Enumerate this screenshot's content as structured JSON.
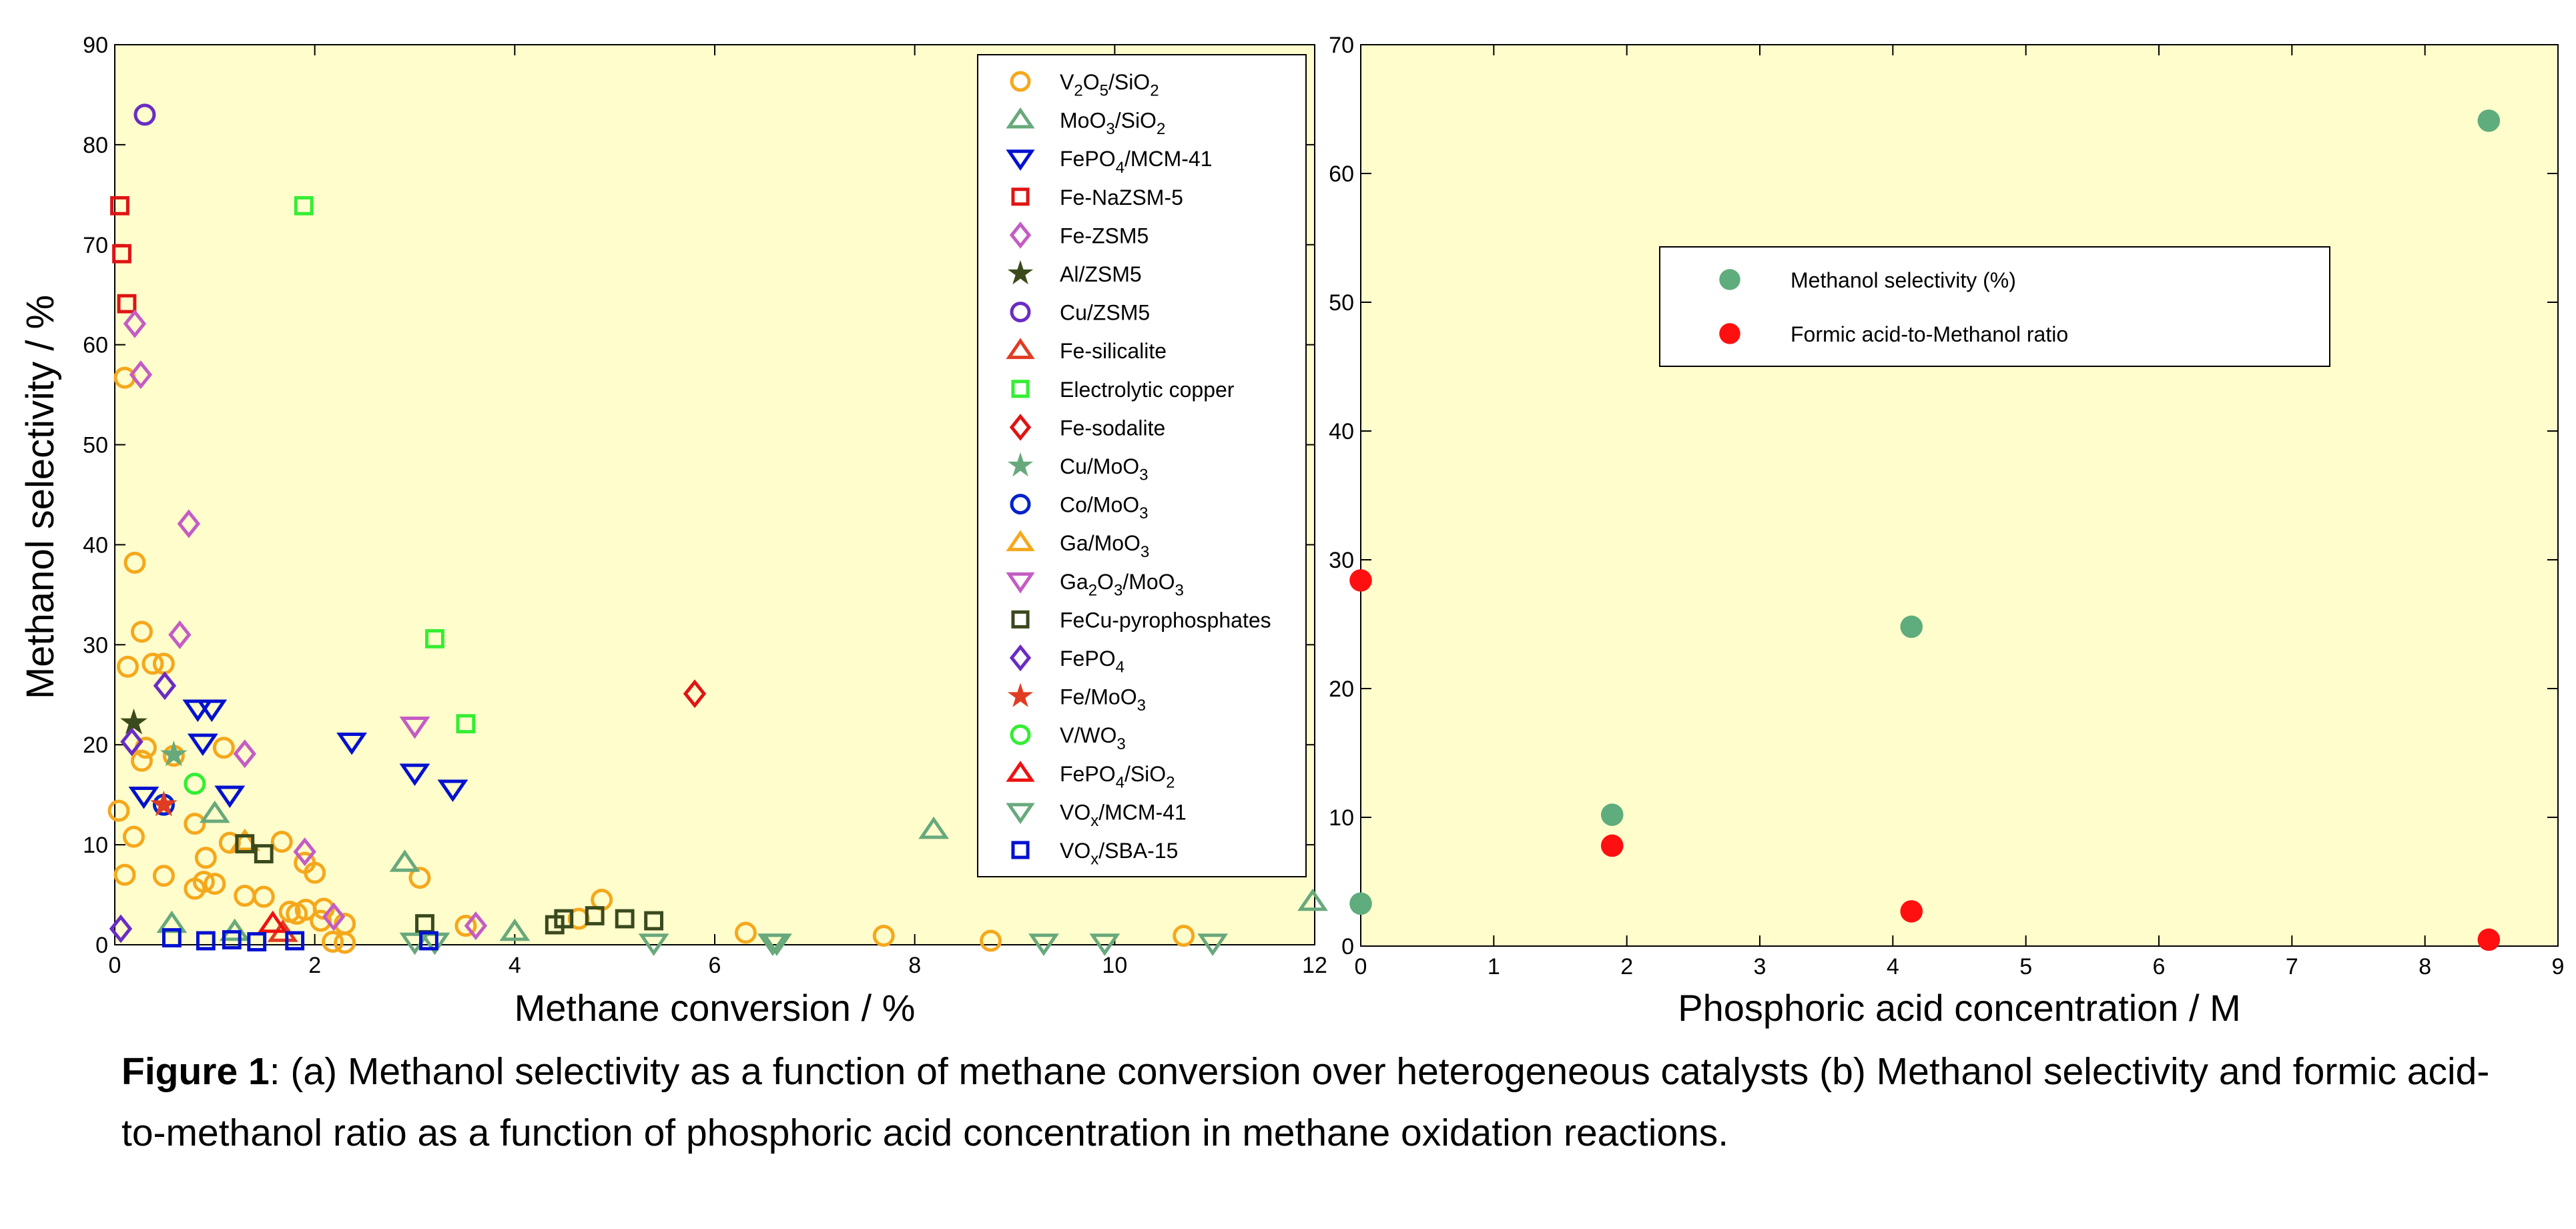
{
  "chart_data": [
    {
      "type": "scatter",
      "panel": "(a)",
      "xlabel": "Methane conversion / %",
      "ylabel": "Methanol selectivity / %",
      "xlim": [
        0,
        12
      ],
      "ylim": [
        0,
        90
      ],
      "xticks": [
        0,
        2,
        4,
        6,
        8,
        10,
        12
      ],
      "yticks": [
        0,
        10,
        20,
        30,
        40,
        50,
        60,
        70,
        80,
        90
      ],
      "grid": false,
      "legend_position": "top-right",
      "background": "#fffdcc",
      "series": [
        {
          "name": "V2O5/SiO2",
          "label_parts": [
            {
              "t": "V"
            },
            {
              "t": "2",
              "sub": true
            },
            {
              "t": "O"
            },
            {
              "t": "5",
              "sub": true
            },
            {
              "t": "/SiO"
            },
            {
              "t": "2",
              "sub": true
            }
          ],
          "marker": "circle",
          "color": "#f5a81c",
          "points": [
            [
              0.1,
              56.7
            ],
            [
              0.2,
              38.2
            ],
            [
              0.27,
              31.3
            ],
            [
              0.13,
              27.8
            ],
            [
              0.38,
              28.1
            ],
            [
              0.49,
              28.1
            ],
            [
              0.31,
              19.7
            ],
            [
              0.27,
              18.4
            ],
            [
              0.59,
              18.9
            ],
            [
              1.09,
              19.7
            ],
            [
              0.04,
              13.4
            ],
            [
              0.8,
              12.1
            ],
            [
              0.19,
              10.8
            ],
            [
              1.15,
              10.2
            ],
            [
              1.67,
              10.3
            ],
            [
              0.91,
              8.7
            ],
            [
              1.9,
              8.2
            ],
            [
              0.1,
              7.0
            ],
            [
              0.49,
              6.9
            ],
            [
              2.0,
              7.2
            ],
            [
              3.05,
              6.7
            ],
            [
              0.8,
              5.6
            ],
            [
              0.89,
              6.3
            ],
            [
              1.0,
              6.1
            ],
            [
              1.3,
              4.9
            ],
            [
              1.49,
              4.8
            ],
            [
              1.75,
              3.3
            ],
            [
              1.82,
              3.1
            ],
            [
              1.91,
              3.5
            ],
            [
              2.09,
              3.6
            ],
            [
              2.06,
              2.4
            ],
            [
              2.3,
              2.1
            ],
            [
              2.18,
              0.3
            ],
            [
              2.3,
              0.2
            ],
            [
              3.51,
              1.9
            ],
            [
              4.64,
              2.6
            ],
            [
              4.87,
              4.5
            ],
            [
              6.31,
              1.2
            ],
            [
              7.69,
              0.9
            ],
            [
              8.76,
              0.4
            ],
            [
              10.69,
              0.9
            ]
          ]
        },
        {
          "name": "MoO3/SiO2",
          "label_parts": [
            {
              "t": "MoO"
            },
            {
              "t": "3",
              "sub": true
            },
            {
              "t": "/SiO"
            },
            {
              "t": "2",
              "sub": true
            }
          ],
          "marker": "triangle-up",
          "color": "#68a97c",
          "points": [
            [
              0.57,
              2.1
            ],
            [
              1.2,
              1.3
            ],
            [
              1.0,
              13.1
            ],
            [
              2.9,
              8.2
            ],
            [
              4.0,
              1.3
            ],
            [
              8.19,
              11.5
            ],
            [
              11.98,
              4.3
            ]
          ]
        },
        {
          "name": "FePO4/MCM-41",
          "label_parts": [
            {
              "t": "FePO"
            },
            {
              "t": "4",
              "sub": true
            },
            {
              "t": "/MCM-41"
            }
          ],
          "marker": "triangle-down",
          "color": "#0010d0",
          "points": [
            [
              0.83,
              23.6
            ],
            [
              0.97,
              23.6
            ],
            [
              0.88,
              20.2
            ],
            [
              0.29,
              14.9
            ],
            [
              1.15,
              15.0
            ],
            [
              2.37,
              20.3
            ],
            [
              3.0,
              17.2
            ],
            [
              3.38,
              15.6
            ]
          ]
        },
        {
          "name": "Fe-NaZSM-5",
          "label_parts": [
            {
              "t": "Fe-NaZSM-5"
            }
          ],
          "marker": "square",
          "color": "#e01414",
          "points": [
            [
              0.05,
              73.9
            ],
            [
              0.07,
              69.1
            ],
            [
              0.12,
              64.1
            ]
          ]
        },
        {
          "name": "Fe-ZSM5",
          "label_parts": [
            {
              "t": "Fe-ZSM5"
            }
          ],
          "marker": "diamond",
          "color": "#c45cc4",
          "points": [
            [
              0.2,
              62.1
            ],
            [
              0.26,
              57.0
            ],
            [
              0.74,
              42.1
            ],
            [
              0.65,
              31.0
            ],
            [
              1.3,
              19.1
            ],
            [
              1.9,
              9.3
            ],
            [
              2.19,
              2.8
            ],
            [
              3.61,
              1.9
            ]
          ]
        },
        {
          "name": "Al/ZSM5",
          "label_parts": [
            {
              "t": "Al/ZSM5"
            }
          ],
          "marker": "star",
          "color": "#3a4a1c",
          "points": [
            [
              0.19,
              22.2
            ]
          ]
        },
        {
          "name": "Cu/ZSM5",
          "label_parts": [
            {
              "t": "Cu/ZSM5"
            }
          ],
          "marker": "circle",
          "color": "#6a2cc4",
          "points": [
            [
              0.3,
              83.0
            ]
          ]
        },
        {
          "name": "Fe-silicalite",
          "label_parts": [
            {
              "t": "Fe-silicalite"
            }
          ],
          "marker": "triangle-up",
          "color": "#e03c22",
          "points": [
            [
              1.68,
              1.2
            ]
          ]
        },
        {
          "name": "Electrolytic copper",
          "label_parts": [
            {
              "t": "Electrolytic copper"
            }
          ],
          "marker": "square",
          "color": "#33ee33",
          "points": [
            [
              1.89,
              73.9
            ],
            [
              3.2,
              30.6
            ],
            [
              3.51,
              22.1
            ]
          ]
        },
        {
          "name": "Fe-sodalite",
          "label_parts": [
            {
              "t": "Fe-sodalite"
            }
          ],
          "marker": "diamond",
          "color": "#e01414",
          "points": [
            [
              5.8,
              25.1
            ]
          ]
        },
        {
          "name": "Cu/MoO3",
          "label_parts": [
            {
              "t": "Cu/MoO"
            },
            {
              "t": "3",
              "sub": true
            }
          ],
          "marker": "star",
          "color": "#68a97c",
          "points": [
            [
              0.59,
              19.0
            ]
          ]
        },
        {
          "name": "Co/MoO3",
          "label_parts": [
            {
              "t": "Co/MoO"
            },
            {
              "t": "3",
              "sub": true
            }
          ],
          "marker": "circle",
          "color": "#0022cc",
          "points": [
            [
              0.49,
              14.0
            ]
          ]
        },
        {
          "name": "Ga/MoO3",
          "label_parts": [
            {
              "t": "Ga/MoO"
            },
            {
              "t": "3",
              "sub": true
            }
          ],
          "marker": "triangle-up",
          "color": "#f5a81c",
          "points": [
            [
              1.3,
              10.3
            ]
          ]
        },
        {
          "name": "Ga2O3/MoO3",
          "label_parts": [
            {
              "t": "Ga"
            },
            {
              "t": "2",
              "sub": true
            },
            {
              "t": "O"
            },
            {
              "t": "3",
              "sub": true
            },
            {
              "t": "/MoO"
            },
            {
              "t": "3",
              "sub": true
            }
          ],
          "marker": "triangle-down",
          "color": "#c45cc4",
          "points": [
            [
              3.0,
              21.9
            ]
          ]
        },
        {
          "name": "FeCu-pyrophosphates",
          "label_parts": [
            {
              "t": "FeCu-pyrophosphates"
            }
          ],
          "marker": "square",
          "color": "#3a4a1e",
          "points": [
            [
              1.3,
              10.1
            ],
            [
              1.49,
              9.1
            ],
            [
              3.1,
              2.1
            ],
            [
              4.4,
              2.0
            ],
            [
              4.49,
              2.6
            ],
            [
              4.8,
              2.9
            ],
            [
              5.1,
              2.6
            ],
            [
              5.39,
              2.4
            ]
          ]
        },
        {
          "name": "FePO4",
          "label_parts": [
            {
              "t": "FePO"
            },
            {
              "t": "4",
              "sub": true
            }
          ],
          "marker": "diamond",
          "color": "#6a2cc4",
          "points": [
            [
              0.06,
              1.6
            ],
            [
              0.17,
              20.3
            ],
            [
              0.5,
              25.9
            ]
          ]
        },
        {
          "name": "Fe/MoO3",
          "label_parts": [
            {
              "t": "Fe/MoO"
            },
            {
              "t": "3",
              "sub": true
            }
          ],
          "marker": "star",
          "color": "#e03c22",
          "points": [
            [
              0.49,
              14.0
            ]
          ]
        },
        {
          "name": "V/WO3",
          "label_parts": [
            {
              "t": "V/WO"
            },
            {
              "t": "3",
              "sub": true
            }
          ],
          "marker": "circle",
          "color": "#33ee33",
          "points": [
            [
              0.8,
              16.1
            ]
          ]
        },
        {
          "name": "FePO4/SiO2",
          "label_parts": [
            {
              "t": "FePO"
            },
            {
              "t": "4",
              "sub": true
            },
            {
              "t": "/SiO"
            },
            {
              "t": "2",
              "sub": true
            }
          ],
          "marker": "triangle-up",
          "color": "#ee1111",
          "points": [
            [
              1.58,
              2.1
            ]
          ]
        },
        {
          "name": "VOx/MCM-41",
          "label_parts": [
            {
              "t": "VO"
            },
            {
              "t": "x",
              "sub": true
            },
            {
              "t": "/MCM-41"
            }
          ],
          "marker": "triangle-down",
          "color": "#68a97c",
          "points": [
            [
              3.0,
              0.3
            ],
            [
              3.2,
              0.3
            ],
            [
              5.39,
              0.2
            ],
            [
              6.58,
              0.2
            ],
            [
              6.62,
              0.2
            ],
            [
              9.29,
              0.2
            ],
            [
              9.9,
              0.2
            ],
            [
              10.98,
              0.2
            ]
          ]
        },
        {
          "name": "VOx/SBA-15",
          "label_parts": [
            {
              "t": "VO"
            },
            {
              "t": "x",
              "sub": true
            },
            {
              "t": "/SBA-15"
            }
          ],
          "marker": "square",
          "color": "#0010d0",
          "points": [
            [
              0.57,
              0.7
            ],
            [
              0.91,
              0.4
            ],
            [
              1.17,
              0.5
            ],
            [
              1.42,
              0.3
            ],
            [
              1.8,
              0.4
            ],
            [
              3.14,
              0.4
            ]
          ]
        }
      ]
    },
    {
      "type": "scatter",
      "panel": "(b)",
      "xlabel": "Phosphoric acid concentration / M",
      "ylabel": "",
      "xlim": [
        0,
        9
      ],
      "ylim": [
        0,
        70
      ],
      "xticks": [
        0,
        1,
        2,
        3,
        4,
        5,
        6,
        7,
        8,
        9
      ],
      "yticks": [
        0,
        10,
        20,
        30,
        40,
        50,
        60,
        70
      ],
      "grid": false,
      "legend_position": "upper-center",
      "background": "#fffdcc",
      "series": [
        {
          "name": "Methanol selectivity (%)",
          "label_parts": [
            {
              "t": "Methanol selectivity (%)"
            }
          ],
          "marker": "filled-circle",
          "color": "#5fac7c",
          "points": [
            [
              0,
              3.3
            ],
            [
              1.89,
              10.2
            ],
            [
              4.14,
              24.8
            ],
            [
              8.48,
              64.1
            ]
          ]
        },
        {
          "name": "Formic acid-to-Methanol ratio",
          "label_parts": [
            {
              "t": "Formic acid-to-Methanol ratio"
            }
          ],
          "marker": "filled-circle",
          "color": "#ff1010",
          "points": [
            [
              0,
              28.4
            ],
            [
              1.89,
              7.8
            ],
            [
              4.14,
              2.7
            ],
            [
              8.48,
              0.5
            ]
          ]
        }
      ]
    }
  ],
  "caption": {
    "label": "Figure 1",
    "text": ": (a) Methanol selectivity as a function of methane conversion over heterogeneous catalysts (b) Methanol selectivity and formic acid-to-methanol ratio as a function of phosphoric acid concentration in methane oxidation reactions."
  }
}
